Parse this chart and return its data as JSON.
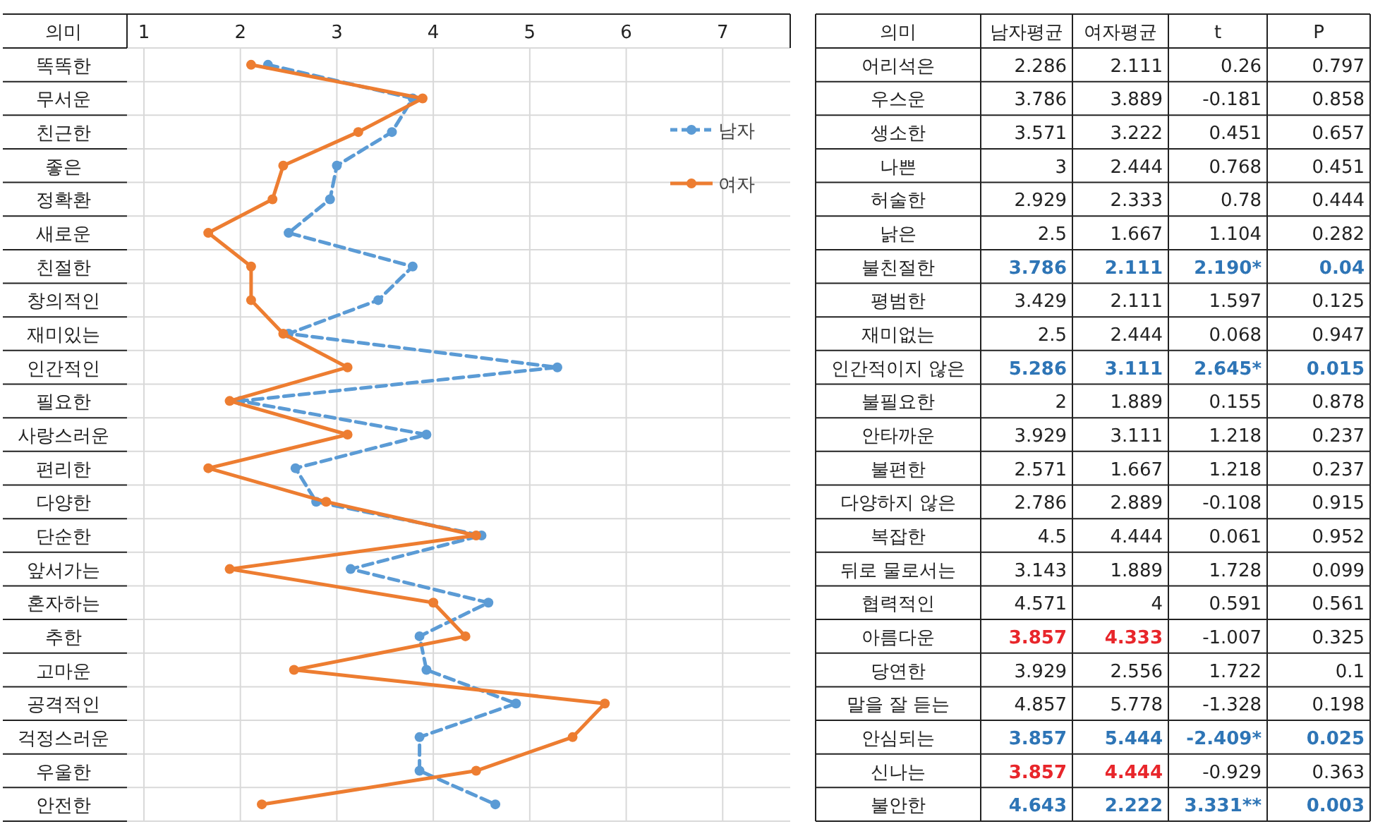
{
  "chart_data": [
    {
      "type": "line",
      "ylabel": "의미",
      "categories": [
        "똑똑한",
        "무서운",
        "친근한",
        "좋은",
        "정확환",
        "새로운",
        "친절한",
        "창의적인",
        "재미있는",
        "인간적인",
        "필요한",
        "사랑스러운",
        "편리한",
        "다양한",
        "단순한",
        "앞서가는",
        "혼자하는",
        "추한",
        "고마운",
        "공격적인",
        "걱정스러운",
        "우울한",
        "안전한"
      ],
      "orientation": "horizontal",
      "xlim": [
        1,
        7.7
      ],
      "xticks": [
        1,
        2,
        3,
        4,
        5,
        6,
        7
      ],
      "grid": "x",
      "legend": "right",
      "marker": "circle",
      "series": [
        {
          "name": "남자",
          "color": "#5b9bd5",
          "line_style": "dashed",
          "values": [
            2.286,
            3.786,
            3.571,
            3,
            2.929,
            2.5,
            3.786,
            3.429,
            2.5,
            5.286,
            2,
            3.929,
            2.571,
            2.786,
            4.5,
            3.143,
            4.571,
            3.857,
            3.929,
            4.857,
            3.857,
            3.857,
            4.643
          ]
        },
        {
          "name": "여자",
          "color": "#ed7d31",
          "line_style": "solid",
          "values": [
            2.111,
            3.889,
            3.222,
            2.444,
            2.333,
            1.667,
            2.111,
            2.111,
            2.444,
            3.111,
            1.889,
            3.111,
            1.667,
            2.889,
            4.444,
            1.889,
            4,
            4.333,
            2.556,
            5.778,
            5.444,
            4.444,
            2.222
          ]
        }
      ]
    },
    {
      "type": "other",
      "ylabel": "의미",
      "categories": [
        "남자평균",
        "여자평균",
        "t",
        "P"
      ],
      "y_categories": [
        "어리석은",
        "우스운",
        "생소한",
        "나쁜",
        "허술한",
        "낡은",
        "불친절한",
        "평범한",
        "재미없는",
        "인간적이지 않은",
        "불필요한",
        "안타까운",
        "불편한",
        "다양하지 않은",
        "복잡한",
        "뒤로 물로서는",
        "협력적인",
        "아름다운",
        "당연한",
        "말을 잘 듣는",
        "안심되는",
        "신나는",
        "불안한"
      ],
      "cell_labels": [
        [
          "2.286",
          "2.111",
          "0.26",
          "0.797"
        ],
        [
          "3.786",
          "3.889",
          "-0.181",
          "0.858"
        ],
        [
          "3.571",
          "3.222",
          "0.451",
          "0.657"
        ],
        [
          "3",
          "2.444",
          "0.768",
          "0.451"
        ],
        [
          "2.929",
          "2.333",
          "0.78",
          "0.444"
        ],
        [
          "2.5",
          "1.667",
          "1.104",
          "0.282"
        ],
        [
          "3.786",
          "2.111",
          "2.190*",
          "0.04"
        ],
        [
          "3.429",
          "2.111",
          "1.597",
          "0.125"
        ],
        [
          "2.5",
          "2.444",
          "0.068",
          "0.947"
        ],
        [
          "5.286",
          "3.111",
          "2.645*",
          "0.015"
        ],
        [
          "2",
          "1.889",
          "0.155",
          "0.878"
        ],
        [
          "3.929",
          "3.111",
          "1.218",
          "0.237"
        ],
        [
          "2.571",
          "1.667",
          "1.218",
          "0.237"
        ],
        [
          "2.786",
          "2.889",
          "-0.108",
          "0.915"
        ],
        [
          "4.5",
          "4.444",
          "0.061",
          "0.952"
        ],
        [
          "3.143",
          "1.889",
          "1.728",
          "0.099"
        ],
        [
          "4.571",
          "4",
          "0.591",
          "0.561"
        ],
        [
          "3.857",
          "4.333",
          "-1.007",
          "0.325"
        ],
        [
          "3.929",
          "2.556",
          "1.722",
          "0.1"
        ],
        [
          "4.857",
          "5.778",
          "-1.328",
          "0.198"
        ],
        [
          "3.857",
          "5.444",
          "-2.409*",
          "0.025"
        ],
        [
          "3.857",
          "4.444",
          "-0.929",
          "0.363"
        ],
        [
          "4.643",
          "2.222",
          "3.331**",
          "0.003"
        ]
      ],
      "colors": [
        [
          null,
          null,
          null,
          null
        ],
        [
          null,
          null,
          null,
          null
        ],
        [
          null,
          null,
          null,
          null
        ],
        [
          null,
          null,
          null,
          null
        ],
        [
          null,
          null,
          null,
          null
        ],
        [
          null,
          null,
          null,
          null
        ],
        [
          "#2e75b6",
          "#2e75b6",
          "#2e75b6",
          "#2e75b6"
        ],
        [
          null,
          null,
          null,
          null
        ],
        [
          null,
          null,
          null,
          null
        ],
        [
          "#2e75b6",
          "#2e75b6",
          "#2e75b6",
          "#2e75b6"
        ],
        [
          null,
          null,
          null,
          null
        ],
        [
          null,
          null,
          null,
          null
        ],
        [
          null,
          null,
          null,
          null
        ],
        [
          null,
          null,
          null,
          null
        ],
        [
          null,
          null,
          null,
          null
        ],
        [
          null,
          null,
          null,
          null
        ],
        [
          null,
          null,
          null,
          null
        ],
        [
          "#e8262b",
          "#e8262b",
          null,
          null
        ],
        [
          null,
          null,
          null,
          null
        ],
        [
          null,
          null,
          null,
          null
        ],
        [
          "#2e75b6",
          "#2e75b6",
          "#2e75b6",
          "#2e75b6"
        ],
        [
          "#e8262b",
          "#e8262b",
          null,
          null
        ],
        [
          "#2e75b6",
          "#2e75b6",
          "#2e75b6",
          "#2e75b6"
        ]
      ]
    }
  ]
}
